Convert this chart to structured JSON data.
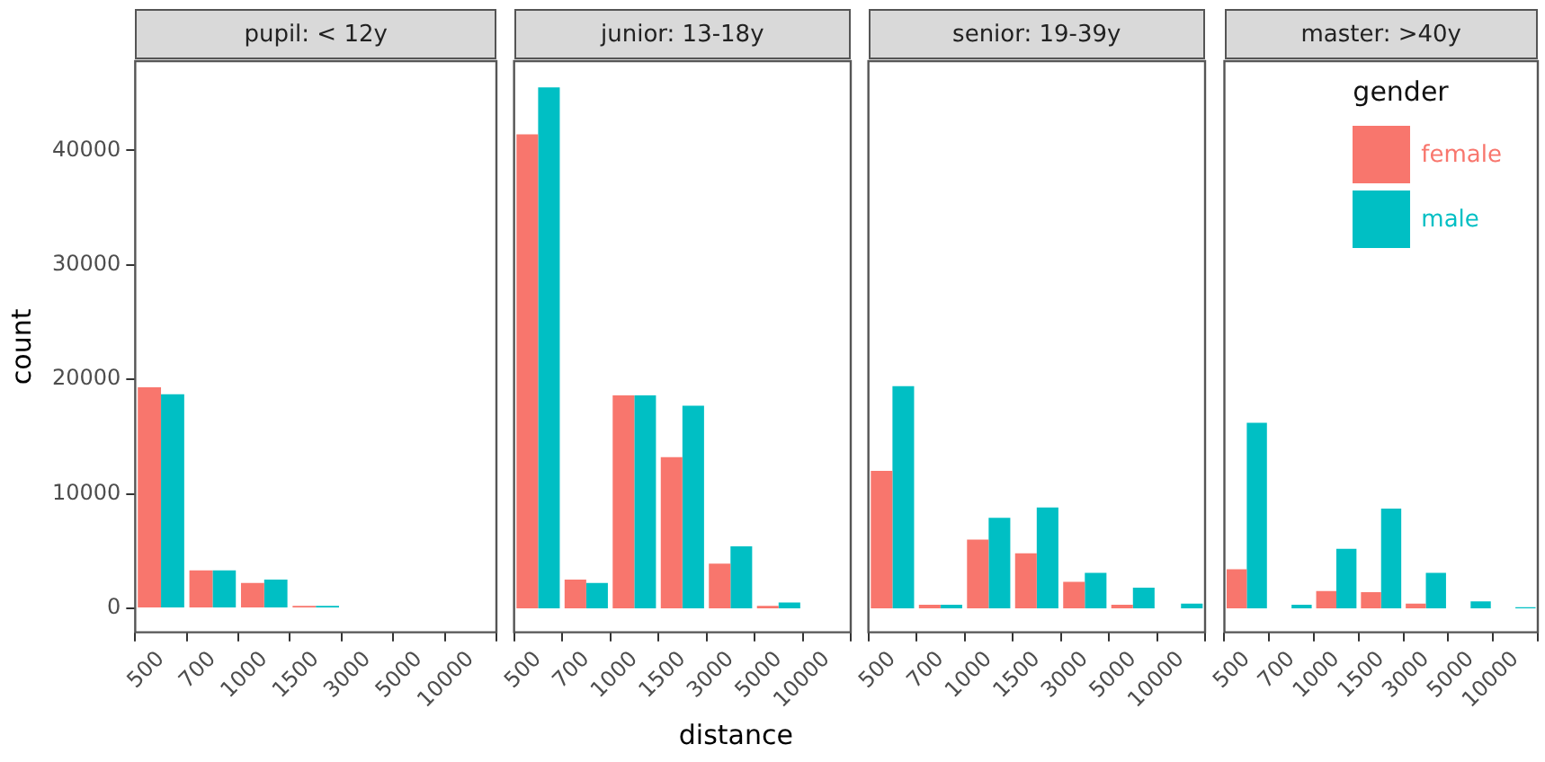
{
  "chart_data": [
    {
      "type": "bar",
      "title": "pupil: < 12y",
      "ylabel": "count",
      "categories": [
        "500",
        "700",
        "1000",
        "1500",
        "3000",
        "5000",
        "10000"
      ],
      "ylim": [
        -2100,
        47800
      ],
      "yticks": [
        0,
        10000,
        20000,
        30000,
        40000
      ],
      "series": [
        {
          "color": "#f8766d",
          "values": [
            19300,
            3300,
            2200,
            200,
            null,
            null,
            null
          ]
        },
        {
          "color": "#00bfc4",
          "values": [
            18700,
            3300,
            2500,
            200,
            null,
            null,
            null
          ]
        }
      ]
    },
    {
      "type": "bar",
      "title": "junior: 13-18y",
      "xlabel": "distance",
      "categories": [
        "500",
        "700",
        "1000",
        "1500",
        "3000",
        "5000",
        "10000"
      ],
      "ylim": [
        -2100,
        47800
      ],
      "yticks": [
        0,
        10000,
        20000,
        30000,
        40000
      ],
      "tick_labels": "x",
      "series": [
        {
          "color": "#f8766d",
          "values": [
            41400,
            2500,
            18600,
            13200,
            3900,
            200,
            null
          ]
        },
        {
          "color": "#00bfc4",
          "values": [
            45500,
            2200,
            18600,
            17700,
            5400,
            500,
            null
          ]
        }
      ]
    },
    {
      "type": "bar",
      "title": "senior: 19-39y",
      "categories": [
        "500",
        "700",
        "1000",
        "1500",
        "3000",
        "5000",
        "10000"
      ],
      "ylim": [
        -2100,
        47800
      ],
      "yticks": [
        0,
        10000,
        20000,
        30000,
        40000
      ],
      "tick_labels": "x",
      "series": [
        {
          "color": "#f8766d",
          "values": [
            12000,
            300,
            6000,
            4800,
            2300,
            300,
            null
          ]
        },
        {
          "color": "#00bfc4",
          "values": [
            19400,
            300,
            7900,
            8800,
            3100,
            1800,
            400
          ]
        }
      ]
    },
    {
      "type": "bar",
      "title": "master: >40y",
      "categories": [
        "500",
        "700",
        "1000",
        "1500",
        "3000",
        "5000",
        "10000"
      ],
      "ylim": [
        -2100,
        47800
      ],
      "yticks": [
        0,
        10000,
        20000,
        30000,
        40000
      ],
      "tick_labels": "x",
      "legend": "top right",
      "legend_title": "gender",
      "series": [
        {
          "name": "female",
          "color": "#f8766d",
          "values": [
            3400,
            null,
            1500,
            1400,
            400,
            null,
            null
          ]
        },
        {
          "name": "male",
          "color": "#00bfc4",
          "values": [
            16200,
            300,
            5200,
            8700,
            3100,
            600,
            100
          ]
        }
      ]
    }
  ]
}
